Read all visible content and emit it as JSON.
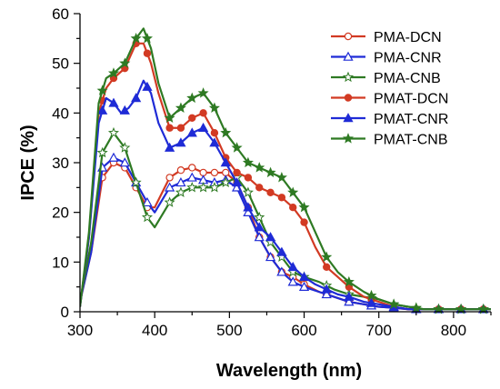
{
  "chart_data": {
    "type": "line",
    "title": "",
    "xlabel": "Wavelength (nm)",
    "ylabel": "IPCE (%)",
    "xlim": [
      300,
      850
    ],
    "ylim": [
      0,
      60
    ],
    "x_ticks": [
      300,
      400,
      500,
      600,
      700,
      800
    ],
    "y_ticks": [
      0,
      10,
      20,
      30,
      40,
      50,
      60
    ],
    "grid": false,
    "legend_position": "top-right",
    "series": [
      {
        "name": "PMA-DCN",
        "color": "#d23a23",
        "marker": "open-circle",
        "points": [
          [
            300,
            2
          ],
          [
            315,
            12
          ],
          [
            330,
            27
          ],
          [
            345,
            30
          ],
          [
            360,
            29
          ],
          [
            375,
            25
          ],
          [
            390,
            21
          ],
          [
            400,
            21
          ],
          [
            420,
            27
          ],
          [
            435,
            28.5
          ],
          [
            450,
            29
          ],
          [
            465,
            28
          ],
          [
            480,
            28
          ],
          [
            495,
            28
          ],
          [
            510,
            26
          ],
          [
            525,
            21
          ],
          [
            540,
            15
          ],
          [
            555,
            11
          ],
          [
            570,
            8
          ],
          [
            585,
            7
          ],
          [
            600,
            5.5
          ],
          [
            620,
            4
          ],
          [
            640,
            3
          ],
          [
            660,
            2
          ],
          [
            680,
            1.5
          ],
          [
            700,
            1
          ],
          [
            720,
            0.8
          ],
          [
            740,
            0.5
          ],
          [
            760,
            0.5
          ],
          [
            790,
            0.5
          ],
          [
            820,
            0.5
          ],
          [
            850,
            0.5
          ]
        ],
        "marker_x": [
          330,
          345,
          360,
          375,
          390,
          420,
          435,
          450,
          465,
          480,
          495,
          510,
          525,
          540,
          555,
          570,
          585,
          600,
          630,
          660,
          690,
          720,
          750,
          780,
          810,
          840
        ]
      },
      {
        "name": "PMA-CNR",
        "color": "#1f2bd6",
        "marker": "open-triangle",
        "points": [
          [
            300,
            2
          ],
          [
            315,
            12
          ],
          [
            330,
            29
          ],
          [
            345,
            31
          ],
          [
            360,
            30
          ],
          [
            375,
            26
          ],
          [
            390,
            22
          ],
          [
            400,
            20
          ],
          [
            420,
            25
          ],
          [
            435,
            26
          ],
          [
            450,
            27
          ],
          [
            465,
            26.5
          ],
          [
            480,
            26
          ],
          [
            495,
            26.5
          ],
          [
            510,
            25
          ],
          [
            525,
            20
          ],
          [
            540,
            15
          ],
          [
            555,
            11
          ],
          [
            570,
            8
          ],
          [
            585,
            6
          ],
          [
            600,
            5
          ],
          [
            620,
            4
          ],
          [
            640,
            3
          ],
          [
            660,
            2
          ],
          [
            680,
            1.5
          ],
          [
            700,
            1
          ],
          [
            720,
            0.8
          ],
          [
            740,
            0.5
          ],
          [
            760,
            0.5
          ],
          [
            790,
            0.5
          ],
          [
            820,
            0.5
          ],
          [
            850,
            0.5
          ]
        ],
        "marker_x": [
          330,
          345,
          360,
          375,
          390,
          420,
          435,
          450,
          465,
          480,
          495,
          510,
          525,
          540,
          555,
          570,
          585,
          600,
          630,
          660,
          690,
          720,
          750,
          780,
          810,
          840
        ]
      },
      {
        "name": "PMA-CNB",
        "color": "#2e7a23",
        "marker": "open-star",
        "points": [
          [
            300,
            2
          ],
          [
            315,
            14
          ],
          [
            330,
            32
          ],
          [
            345,
            36
          ],
          [
            360,
            33
          ],
          [
            375,
            26
          ],
          [
            390,
            19
          ],
          [
            400,
            17
          ],
          [
            420,
            22
          ],
          [
            435,
            24
          ],
          [
            450,
            25
          ],
          [
            465,
            25
          ],
          [
            480,
            25
          ],
          [
            495,
            26
          ],
          [
            510,
            27
          ],
          [
            525,
            24
          ],
          [
            540,
            19
          ],
          [
            555,
            14
          ],
          [
            570,
            11
          ],
          [
            585,
            8
          ],
          [
            600,
            7
          ],
          [
            620,
            6
          ],
          [
            640,
            4.5
          ],
          [
            660,
            3.5
          ],
          [
            680,
            3
          ],
          [
            700,
            2.5
          ],
          [
            720,
            1.5
          ],
          [
            740,
            1
          ],
          [
            760,
            0.5
          ],
          [
            790,
            0.5
          ],
          [
            820,
            0.5
          ],
          [
            850,
            0.5
          ]
        ],
        "marker_x": [
          330,
          345,
          360,
          375,
          390,
          420,
          435,
          450,
          465,
          480,
          495,
          510,
          525,
          540,
          555,
          570,
          585,
          600,
          630,
          660,
          690,
          720,
          750,
          780,
          810,
          840
        ]
      },
      {
        "name": "PMAT-DCN",
        "color": "#d23a23",
        "marker": "filled-circle",
        "points": [
          [
            300,
            1
          ],
          [
            312,
            15
          ],
          [
            325,
            40
          ],
          [
            335,
            45
          ],
          [
            345,
            47
          ],
          [
            360,
            49
          ],
          [
            375,
            54
          ],
          [
            385,
            54
          ],
          [
            395,
            50
          ],
          [
            405,
            44
          ],
          [
            420,
            37
          ],
          [
            435,
            37
          ],
          [
            450,
            39
          ],
          [
            465,
            40
          ],
          [
            480,
            36
          ],
          [
            495,
            31
          ],
          [
            510,
            28
          ],
          [
            525,
            27
          ],
          [
            540,
            25
          ],
          [
            555,
            24
          ],
          [
            570,
            23
          ],
          [
            585,
            21
          ],
          [
            600,
            18
          ],
          [
            615,
            13
          ],
          [
            630,
            9
          ],
          [
            645,
            7
          ],
          [
            660,
            5
          ],
          [
            680,
            3
          ],
          [
            700,
            2
          ],
          [
            720,
            1
          ],
          [
            740,
            0.5
          ],
          [
            760,
            0.5
          ],
          [
            790,
            0.5
          ],
          [
            820,
            0.5
          ],
          [
            850,
            0.5
          ]
        ],
        "marker_x": [
          330,
          345,
          360,
          375,
          390,
          420,
          435,
          450,
          465,
          480,
          495,
          510,
          525,
          540,
          555,
          570,
          585,
          600,
          630,
          660,
          690,
          720,
          750,
          780,
          810,
          840
        ]
      },
      {
        "name": "PMAT-CNR",
        "color": "#1f2bd6",
        "marker": "filled-triangle",
        "points": [
          [
            300,
            1
          ],
          [
            312,
            15
          ],
          [
            325,
            38
          ],
          [
            335,
            43
          ],
          [
            345,
            42
          ],
          [
            355,
            40
          ],
          [
            365,
            41
          ],
          [
            375,
            43
          ],
          [
            385,
            46.5
          ],
          [
            395,
            44
          ],
          [
            405,
            38
          ],
          [
            420,
            33
          ],
          [
            435,
            34
          ],
          [
            450,
            36
          ],
          [
            465,
            37
          ],
          [
            480,
            34
          ],
          [
            495,
            30
          ],
          [
            510,
            26
          ],
          [
            525,
            21
          ],
          [
            540,
            17
          ],
          [
            555,
            15
          ],
          [
            570,
            12
          ],
          [
            585,
            9
          ],
          [
            600,
            7
          ],
          [
            615,
            5.5
          ],
          [
            630,
            4.5
          ],
          [
            645,
            3.5
          ],
          [
            660,
            3
          ],
          [
            680,
            2
          ],
          [
            700,
            1.5
          ],
          [
            720,
            1
          ],
          [
            740,
            0.5
          ],
          [
            760,
            0.5
          ],
          [
            790,
            0.5
          ],
          [
            820,
            0.5
          ],
          [
            850,
            0.5
          ]
        ],
        "marker_x": [
          330,
          345,
          360,
          375,
          390,
          420,
          435,
          450,
          465,
          480,
          495,
          510,
          525,
          540,
          555,
          570,
          585,
          600,
          630,
          660,
          690,
          720,
          750,
          780,
          810,
          840
        ]
      },
      {
        "name": "PMAT-CNB",
        "color": "#2e7a23",
        "marker": "filled-star",
        "points": [
          [
            300,
            1
          ],
          [
            312,
            16
          ],
          [
            325,
            42
          ],
          [
            335,
            47
          ],
          [
            345,
            48
          ],
          [
            360,
            50
          ],
          [
            375,
            55
          ],
          [
            385,
            57
          ],
          [
            395,
            53
          ],
          [
            405,
            46
          ],
          [
            420,
            39
          ],
          [
            435,
            41
          ],
          [
            450,
            43
          ],
          [
            465,
            44
          ],
          [
            480,
            41
          ],
          [
            495,
            36
          ],
          [
            510,
            33
          ],
          [
            525,
            30
          ],
          [
            540,
            29
          ],
          [
            555,
            28
          ],
          [
            570,
            27
          ],
          [
            585,
            24
          ],
          [
            600,
            21
          ],
          [
            615,
            16
          ],
          [
            630,
            11
          ],
          [
            645,
            8
          ],
          [
            660,
            6
          ],
          [
            680,
            4
          ],
          [
            700,
            2.5
          ],
          [
            720,
            1.5
          ],
          [
            740,
            1
          ],
          [
            760,
            0.5
          ],
          [
            790,
            0.5
          ],
          [
            820,
            0.5
          ],
          [
            850,
            0.5
          ]
        ],
        "marker_x": [
          330,
          345,
          360,
          375,
          390,
          420,
          435,
          450,
          465,
          480,
          495,
          510,
          525,
          540,
          555,
          570,
          585,
          600,
          630,
          660,
          690,
          720,
          750,
          780,
          810,
          840
        ]
      }
    ]
  }
}
